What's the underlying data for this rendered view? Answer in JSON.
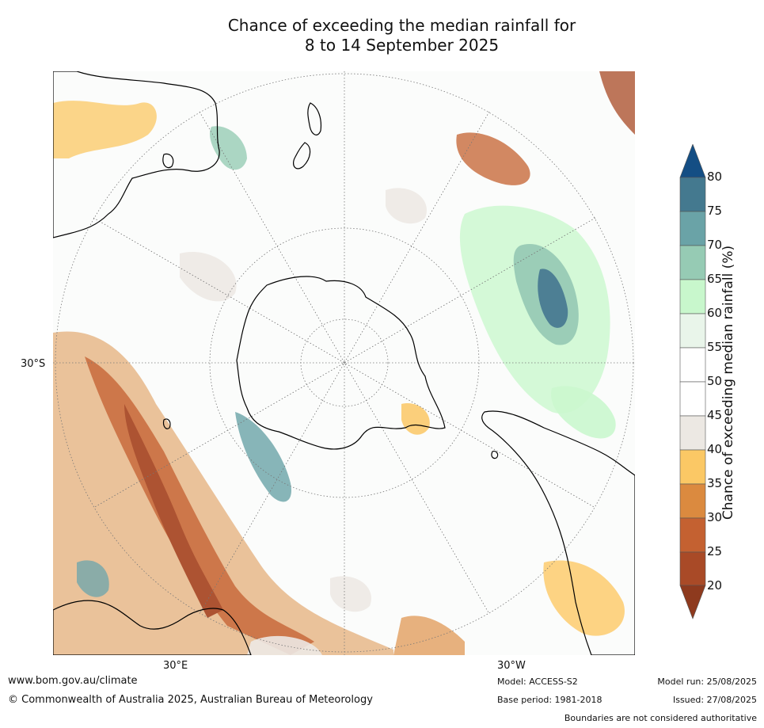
{
  "title_line1": "Chance of exceeding the median rainfall for",
  "title_line2": "8 to 14 September 2025",
  "map": {
    "projection": "south-polar-stereographic",
    "lat_label": "30°S",
    "lon_labels": [
      "30°E",
      "30°W"
    ],
    "regions": [
      "Antarctica",
      "Australia",
      "New Zealand",
      "South America",
      "Southern Africa"
    ]
  },
  "legend": {
    "title": "Chance of exceeding median rainfall (%)",
    "ticks": [
      "80",
      "75",
      "70",
      "65",
      "60",
      "55",
      "50",
      "45",
      "40",
      "35",
      "30",
      "25",
      "20"
    ],
    "colors": [
      "#8e3a1e",
      "#a94a27",
      "#c46131",
      "#db8a3f",
      "#fbc865",
      "#ece8e3",
      "#ffffff",
      "#ffffff",
      "#e9f5ea",
      "#c8f7cc",
      "#96cbb4",
      "#6aa3a7",
      "#44798f",
      "#144e84"
    ],
    "bins": [
      "<20",
      "20-25",
      "25-30",
      "30-35",
      "35-40",
      "40-45",
      "45-50",
      "50-55",
      "55-60",
      "60-65",
      "65-70",
      "70-75",
      "75-80",
      ">80"
    ]
  },
  "footer": {
    "website": "www.bom.gov.au/climate",
    "copyright": "© Commonwealth of Australia 2025, Australian Bureau of Meteorology",
    "model": "Model: ACCESS-S2",
    "base_period": "Base period: 1981-2018",
    "model_run": "Model run: 25/08/2025",
    "issued": "Issued: 27/08/2025",
    "disclaimer": "Boundaries are not considered authoritative"
  }
}
